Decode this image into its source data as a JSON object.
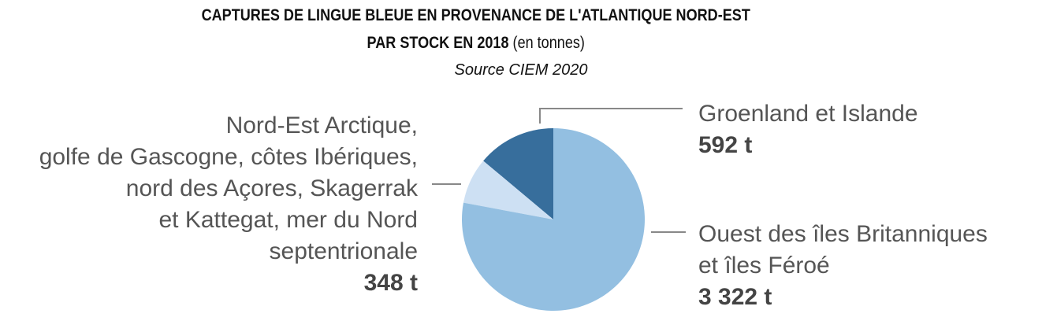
{
  "chart_data": {
    "type": "pie",
    "title": "CAPTURES DE LINGUE BLEUE EN PROVENANCE DE L'ATLANTIQUE NORD-EST",
    "title_line2": "PAR STOCK EN 2018",
    "title_unit": "(en tonnes)",
    "subtitle": "Source CIEM 2020",
    "slices": [
      {
        "label": "Groenland et Islande",
        "value": 592,
        "value_label": "592 t",
        "color": "#376e9c"
      },
      {
        "label": "Nord-Est Arctique, golfe de Gascogne, côtes Ibériques, nord des Açores, Skagerrak et Kattegat, mer du Nord septentrionale",
        "label_lines": [
          "Nord-Est Arctique,",
          "golfe de Gascogne, côtes Ibériques,",
          "nord des Açores, Skagerrak",
          "et Kattegat, mer du Nord",
          "septentrionale"
        ],
        "value": 348,
        "value_label": "348 t",
        "color": "#cde0f3"
      },
      {
        "label": "Ouest des îles Britanniques et îles Féroé",
        "label_lines": [
          "Ouest des îles Britanniques",
          "et îles Féroé"
        ],
        "value": 3322,
        "value_label": "3 322 t",
        "color": "#93bfe1"
      }
    ],
    "start": "top",
    "direction": "counterclockwise"
  }
}
